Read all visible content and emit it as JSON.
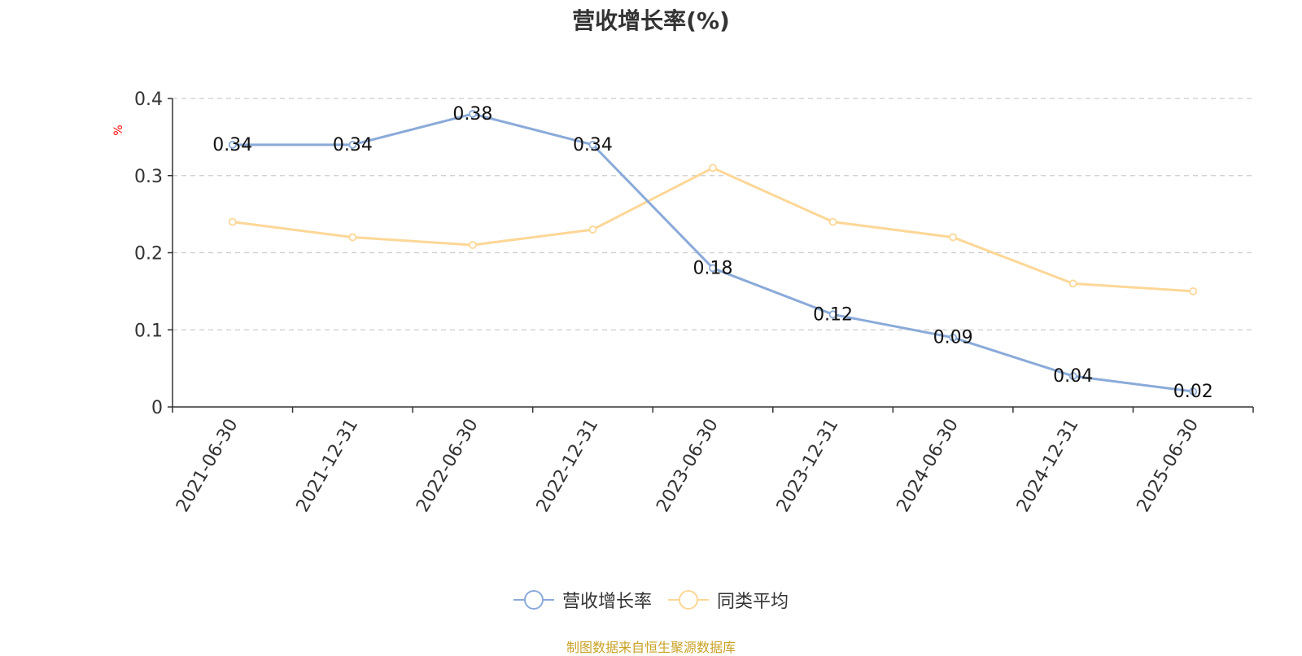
{
  "title": "营收增长率(%)",
  "source_note": "制图数据来自恒生聚源数据库",
  "chart_data": {
    "type": "line",
    "title": "营收增长率(%)",
    "ylabel": "%",
    "xlabel": "",
    "ylim": [
      0,
      0.4
    ],
    "yticks": [
      0,
      0.1,
      0.2,
      0.3,
      0.4
    ],
    "ytick_labels": [
      "0",
      "0.1",
      "0.2",
      "0.3",
      "0.4"
    ],
    "grid": true,
    "legend_position": "bottom",
    "categories": [
      "2021-06-30",
      "2021-12-31",
      "2022-06-30",
      "2022-12-31",
      "2023-06-30",
      "2023-12-31",
      "2024-06-30",
      "2024-12-31",
      "2025-06-30"
    ],
    "series": [
      {
        "name": "营收增长率",
        "color": "#8aaad9",
        "values": [
          0.34,
          0.34,
          0.38,
          0.34,
          0.18,
          0.12,
          0.09,
          0.04,
          0.02
        ],
        "data_labels": [
          "0.34",
          "0.34",
          "0.38",
          "0.34",
          "0.18",
          "0.12",
          "0.09",
          "0.04",
          "0.02"
        ],
        "show_labels": true
      },
      {
        "name": "同类平均",
        "color": "#fdd797",
        "values": [
          0.24,
          0.22,
          0.21,
          0.23,
          0.31,
          0.24,
          0.22,
          0.16,
          0.15
        ],
        "show_labels": false
      }
    ]
  }
}
